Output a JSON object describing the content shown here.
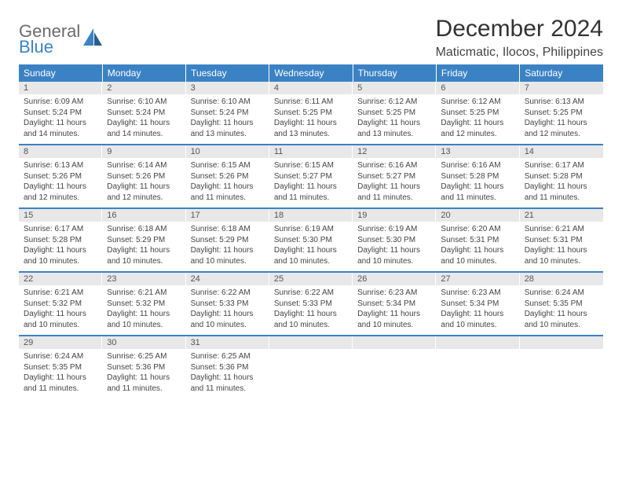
{
  "brand": {
    "line1": "General",
    "line2": "Blue"
  },
  "title": "December 2024",
  "location": "Maticmatic, Ilocos, Philippines",
  "colors": {
    "header_bg": "#3b82c4",
    "header_fg": "#ffffff",
    "daynum_bg": "#e8e8e8",
    "text": "#444444",
    "logo_gray": "#6b6b6b",
    "logo_blue": "#3b82c4",
    "page_bg": "#ffffff"
  },
  "weekdays": [
    "Sunday",
    "Monday",
    "Tuesday",
    "Wednesday",
    "Thursday",
    "Friday",
    "Saturday"
  ],
  "weeks": [
    [
      {
        "n": "1",
        "sr": "6:09 AM",
        "ss": "5:24 PM",
        "dl": "11 hours and 14 minutes."
      },
      {
        "n": "2",
        "sr": "6:10 AM",
        "ss": "5:24 PM",
        "dl": "11 hours and 14 minutes."
      },
      {
        "n": "3",
        "sr": "6:10 AM",
        "ss": "5:24 PM",
        "dl": "11 hours and 13 minutes."
      },
      {
        "n": "4",
        "sr": "6:11 AM",
        "ss": "5:25 PM",
        "dl": "11 hours and 13 minutes."
      },
      {
        "n": "5",
        "sr": "6:12 AM",
        "ss": "5:25 PM",
        "dl": "11 hours and 13 minutes."
      },
      {
        "n": "6",
        "sr": "6:12 AM",
        "ss": "5:25 PM",
        "dl": "11 hours and 12 minutes."
      },
      {
        "n": "7",
        "sr": "6:13 AM",
        "ss": "5:25 PM",
        "dl": "11 hours and 12 minutes."
      }
    ],
    [
      {
        "n": "8",
        "sr": "6:13 AM",
        "ss": "5:26 PM",
        "dl": "11 hours and 12 minutes."
      },
      {
        "n": "9",
        "sr": "6:14 AM",
        "ss": "5:26 PM",
        "dl": "11 hours and 12 minutes."
      },
      {
        "n": "10",
        "sr": "6:15 AM",
        "ss": "5:26 PM",
        "dl": "11 hours and 11 minutes."
      },
      {
        "n": "11",
        "sr": "6:15 AM",
        "ss": "5:27 PM",
        "dl": "11 hours and 11 minutes."
      },
      {
        "n": "12",
        "sr": "6:16 AM",
        "ss": "5:27 PM",
        "dl": "11 hours and 11 minutes."
      },
      {
        "n": "13",
        "sr": "6:16 AM",
        "ss": "5:28 PM",
        "dl": "11 hours and 11 minutes."
      },
      {
        "n": "14",
        "sr": "6:17 AM",
        "ss": "5:28 PM",
        "dl": "11 hours and 11 minutes."
      }
    ],
    [
      {
        "n": "15",
        "sr": "6:17 AM",
        "ss": "5:28 PM",
        "dl": "11 hours and 10 minutes."
      },
      {
        "n": "16",
        "sr": "6:18 AM",
        "ss": "5:29 PM",
        "dl": "11 hours and 10 minutes."
      },
      {
        "n": "17",
        "sr": "6:18 AM",
        "ss": "5:29 PM",
        "dl": "11 hours and 10 minutes."
      },
      {
        "n": "18",
        "sr": "6:19 AM",
        "ss": "5:30 PM",
        "dl": "11 hours and 10 minutes."
      },
      {
        "n": "19",
        "sr": "6:19 AM",
        "ss": "5:30 PM",
        "dl": "11 hours and 10 minutes."
      },
      {
        "n": "20",
        "sr": "6:20 AM",
        "ss": "5:31 PM",
        "dl": "11 hours and 10 minutes."
      },
      {
        "n": "21",
        "sr": "6:21 AM",
        "ss": "5:31 PM",
        "dl": "11 hours and 10 minutes."
      }
    ],
    [
      {
        "n": "22",
        "sr": "6:21 AM",
        "ss": "5:32 PM",
        "dl": "11 hours and 10 minutes."
      },
      {
        "n": "23",
        "sr": "6:21 AM",
        "ss": "5:32 PM",
        "dl": "11 hours and 10 minutes."
      },
      {
        "n": "24",
        "sr": "6:22 AM",
        "ss": "5:33 PM",
        "dl": "11 hours and 10 minutes."
      },
      {
        "n": "25",
        "sr": "6:22 AM",
        "ss": "5:33 PM",
        "dl": "11 hours and 10 minutes."
      },
      {
        "n": "26",
        "sr": "6:23 AM",
        "ss": "5:34 PM",
        "dl": "11 hours and 10 minutes."
      },
      {
        "n": "27",
        "sr": "6:23 AM",
        "ss": "5:34 PM",
        "dl": "11 hours and 10 minutes."
      },
      {
        "n": "28",
        "sr": "6:24 AM",
        "ss": "5:35 PM",
        "dl": "11 hours and 10 minutes."
      }
    ],
    [
      {
        "n": "29",
        "sr": "6:24 AM",
        "ss": "5:35 PM",
        "dl": "11 hours and 11 minutes."
      },
      {
        "n": "30",
        "sr": "6:25 AM",
        "ss": "5:36 PM",
        "dl": "11 hours and 11 minutes."
      },
      {
        "n": "31",
        "sr": "6:25 AM",
        "ss": "5:36 PM",
        "dl": "11 hours and 11 minutes."
      },
      null,
      null,
      null,
      null
    ]
  ],
  "labels": {
    "sunrise": "Sunrise:",
    "sunset": "Sunset:",
    "daylight": "Daylight:"
  }
}
